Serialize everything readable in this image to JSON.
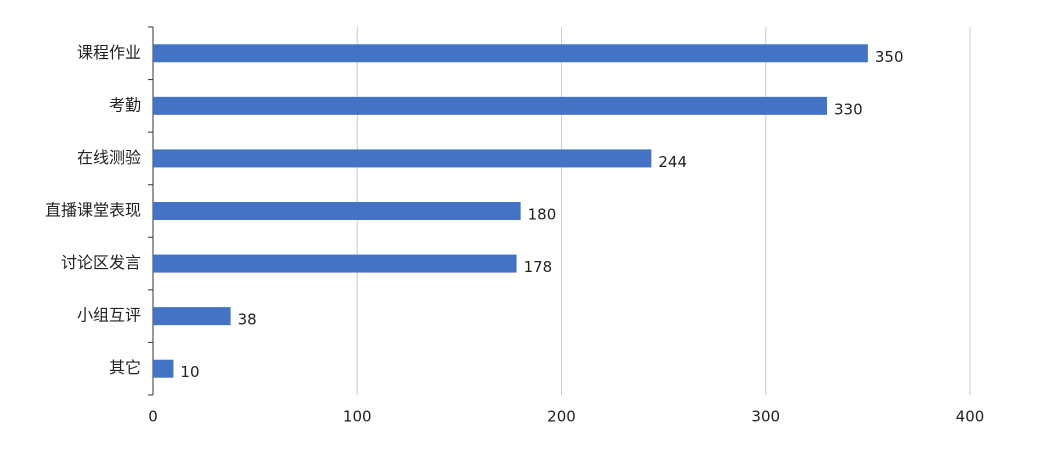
{
  "chart_data": {
    "type": "bar",
    "orientation": "horizontal",
    "categories": [
      "课程作业",
      "考勤",
      "在线测验",
      "直播课堂表现",
      "讨论区发言",
      "小组互评",
      "其它"
    ],
    "values": [
      350,
      330,
      244,
      180,
      178,
      38,
      10
    ],
    "color": "#4472c4",
    "xlim": [
      0,
      400
    ],
    "xticks": [
      0,
      100,
      200,
      300,
      400
    ],
    "grid": true
  }
}
